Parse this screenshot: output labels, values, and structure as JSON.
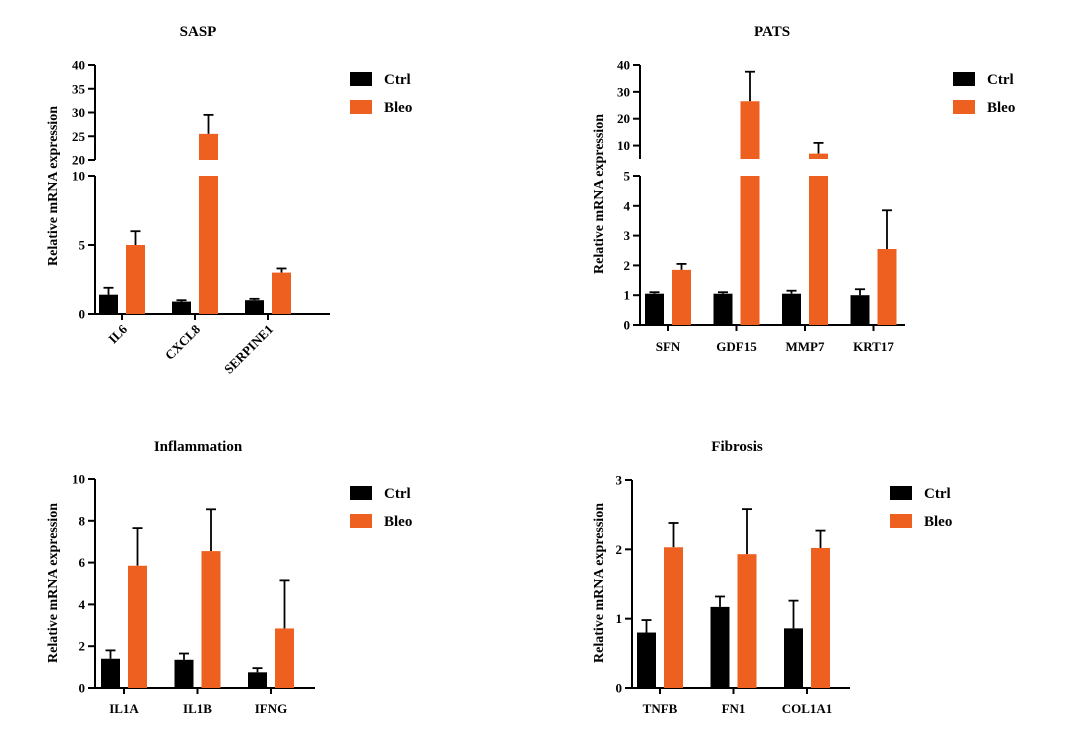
{
  "colors": {
    "ctrl": "#000000",
    "bleo": "#ee6020"
  },
  "chart_data": [
    {
      "type": "bar",
      "title": "SASP",
      "ylabel": "Relative mRNA expression",
      "categories": [
        "IL6",
        "CXCL8",
        "SERPINE1"
      ],
      "series": [
        {
          "name": "Ctrl",
          "values": [
            1.4,
            0.9,
            1.0
          ],
          "errors": [
            0.5,
            0.1,
            0.1
          ]
        },
        {
          "name": "Bleo",
          "values": [
            5.0,
            25.5,
            3.0
          ],
          "errors": [
            1.0,
            4.0,
            0.3
          ]
        }
      ],
      "y_break": {
        "lower": [
          0,
          10
        ],
        "upper": [
          20,
          40
        ]
      },
      "yticks_lower": [
        0,
        5,
        10
      ],
      "yticks_upper": [
        20,
        25,
        30,
        35,
        40
      ],
      "legend": [
        "Ctrl",
        "Bleo"
      ]
    },
    {
      "type": "bar",
      "title": "PATS",
      "ylabel": "Relative mRNA expression",
      "categories": [
        "SFN",
        "GDF15",
        "MMP7",
        "KRT17"
      ],
      "series": [
        {
          "name": "Ctrl",
          "values": [
            1.05,
            1.05,
            1.05,
            1.0
          ],
          "errors": [
            0.05,
            0.05,
            0.1,
            0.2
          ]
        },
        {
          "name": "Bleo",
          "values": [
            1.85,
            26.5,
            7.0,
            2.55
          ],
          "errors": [
            0.2,
            11.0,
            4.0,
            1.3
          ]
        }
      ],
      "y_break": {
        "lower": [
          0,
          5
        ],
        "upper": [
          5,
          40
        ]
      },
      "yticks_lower": [
        0,
        1,
        2,
        3,
        4,
        5
      ],
      "yticks_upper": [
        10,
        20,
        30,
        40
      ],
      "legend": [
        "Ctrl",
        "Bleo"
      ]
    },
    {
      "type": "bar",
      "title": "Inflammation",
      "ylabel": "Relative mRNA expression",
      "categories": [
        "IL1A",
        "IL1B",
        "IFNG"
      ],
      "series": [
        {
          "name": "Ctrl",
          "values": [
            1.4,
            1.35,
            0.75
          ],
          "errors": [
            0.4,
            0.3,
            0.2
          ]
        },
        {
          "name": "Bleo",
          "values": [
            5.85,
            6.55,
            2.85
          ],
          "errors": [
            1.8,
            2.0,
            2.3
          ]
        }
      ],
      "ylim": [
        0,
        10
      ],
      "yticks": [
        0,
        2,
        4,
        6,
        8,
        10
      ],
      "legend": [
        "Ctrl",
        "Bleo"
      ]
    },
    {
      "type": "bar",
      "title": "Fibrosis",
      "ylabel": "Relative mRNA expression",
      "categories": [
        "TNFB",
        "FN1",
        "COL1A1"
      ],
      "series": [
        {
          "name": "Ctrl",
          "values": [
            0.8,
            1.17,
            0.86
          ],
          "errors": [
            0.18,
            0.15,
            0.4
          ]
        },
        {
          "name": "Bleo",
          "values": [
            2.03,
            1.93,
            2.02
          ],
          "errors": [
            0.35,
            0.65,
            0.25
          ]
        }
      ],
      "ylim": [
        0,
        3
      ],
      "yticks": [
        0,
        1,
        2,
        3
      ],
      "legend": [
        "Ctrl",
        "Bleo"
      ]
    }
  ]
}
